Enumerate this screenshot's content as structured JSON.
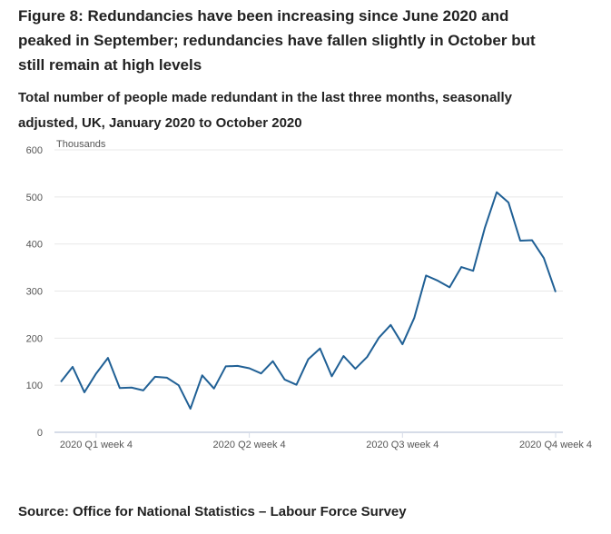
{
  "title": "Figure 8: Redundancies have been increasing since June 2020 and peaked in September; redundancies have fallen slightly in October but still remain at high levels",
  "subtitle": "Total number of people made redundant in the last three months, seasonally adjusted, UK, January 2020 to October 2020",
  "source": "Source: Office for National Statistics – Labour Force Survey",
  "chart_data": {
    "type": "line",
    "ylabel": "Thousands",
    "ylim": [
      0,
      600
    ],
    "yticks": [
      "0",
      "100",
      "200",
      "300",
      "400",
      "500",
      "600"
    ],
    "xtick_labels": [
      {
        "index": 3,
        "label": "2020 Q1 week 4"
      },
      {
        "index": 16,
        "label": "2020 Q2 week 4"
      },
      {
        "index": 29,
        "label": "2020 Q3 week 4"
      },
      {
        "index": 42,
        "label": "2020 Q4 week 4"
      }
    ],
    "grid": true,
    "color": "#206095",
    "values": [
      107,
      139,
      85,
      125,
      158,
      94,
      95,
      89,
      118,
      116,
      100,
      50,
      121,
      93,
      140,
      141,
      136,
      125,
      151,
      112,
      101,
      155,
      178,
      119,
      162,
      135,
      160,
      201,
      228,
      187,
      243,
      333,
      322,
      308,
      351,
      343,
      435,
      510,
      488,
      407,
      408,
      370,
      298
    ]
  }
}
